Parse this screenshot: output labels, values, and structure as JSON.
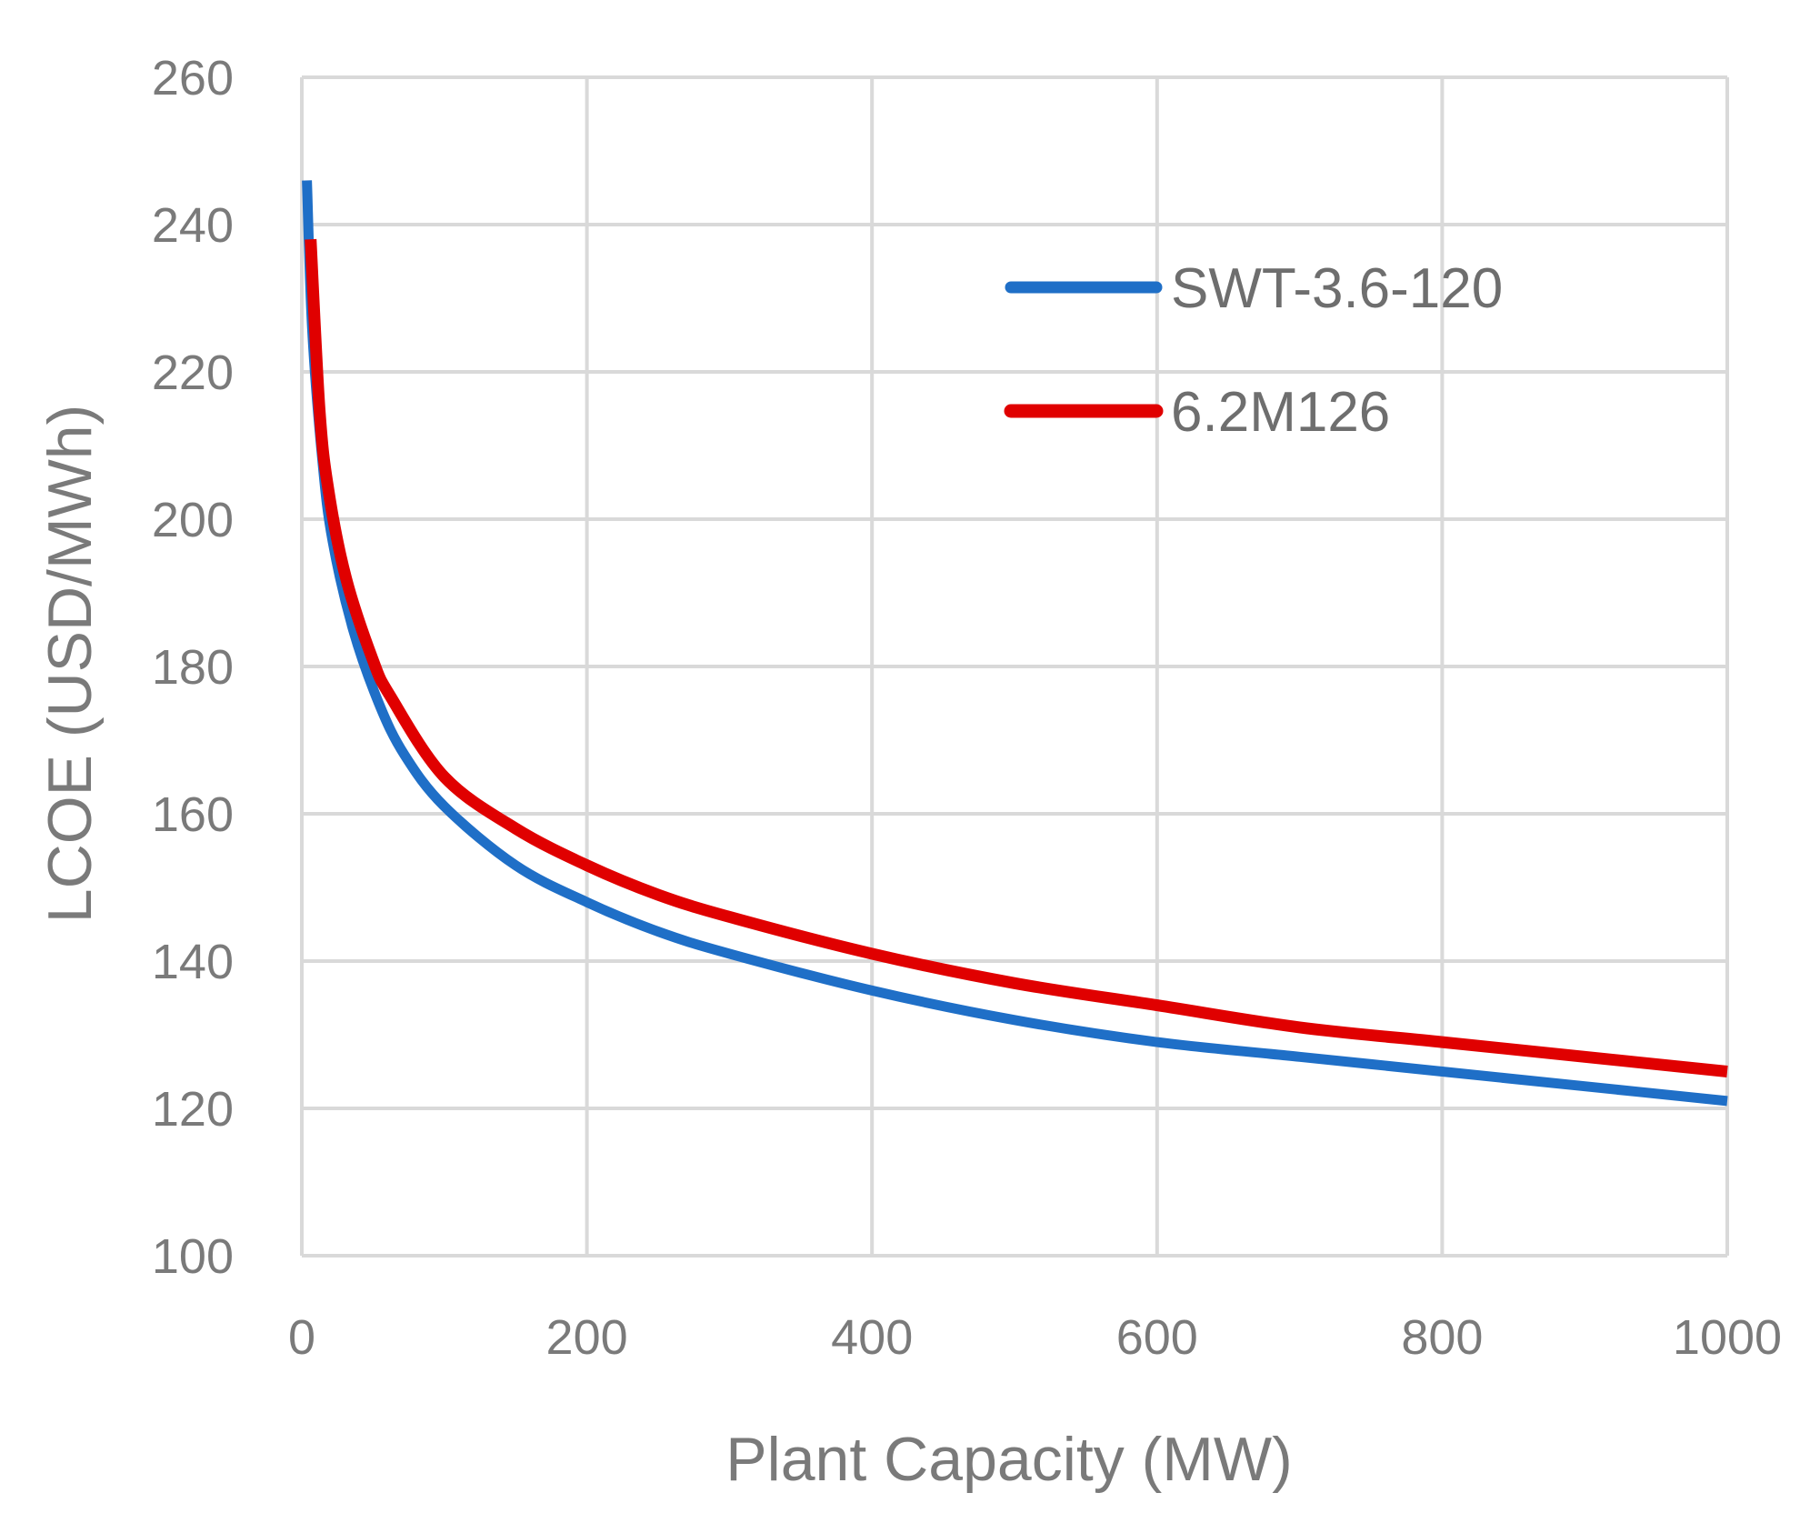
{
  "chart_data": {
    "type": "line",
    "title": "",
    "xlabel": "Plant Capacity (MW)",
    "ylabel": "LCOE (USD/MWh)",
    "xlim": [
      0,
      1000
    ],
    "ylim": [
      100,
      260
    ],
    "xticks": [
      0,
      200,
      400,
      600,
      800,
      1000
    ],
    "yticks": [
      100,
      120,
      140,
      160,
      180,
      200,
      220,
      240,
      260
    ],
    "grid": true,
    "legend_position": "top-right",
    "series": [
      {
        "name": "SWT-3.6-120",
        "color": "#1f6fc7",
        "x": [
          3.6,
          7.2,
          14.4,
          21.6,
          36,
          54,
          72,
          100,
          150,
          200,
          250,
          300,
          400,
          500,
          600,
          700,
          800,
          900,
          1000
        ],
        "y": [
          246,
          226,
          208,
          197,
          185,
          175,
          168,
          161,
          153,
          148,
          144,
          141,
          136,
          132,
          129,
          127,
          125,
          123,
          121
        ]
      },
      {
        "name": "6.2M126",
        "color": "#e00000",
        "x": [
          6.2,
          12.4,
          18.6,
          31,
          49.6,
          62,
          100,
          150,
          200,
          250,
          300,
          400,
          500,
          600,
          700,
          800,
          900,
          1000
        ],
        "y": [
          238,
          215,
          204,
          192,
          181,
          176,
          165,
          158,
          153,
          149,
          146,
          141,
          137,
          134,
          131,
          129,
          127,
          125
        ]
      }
    ]
  }
}
